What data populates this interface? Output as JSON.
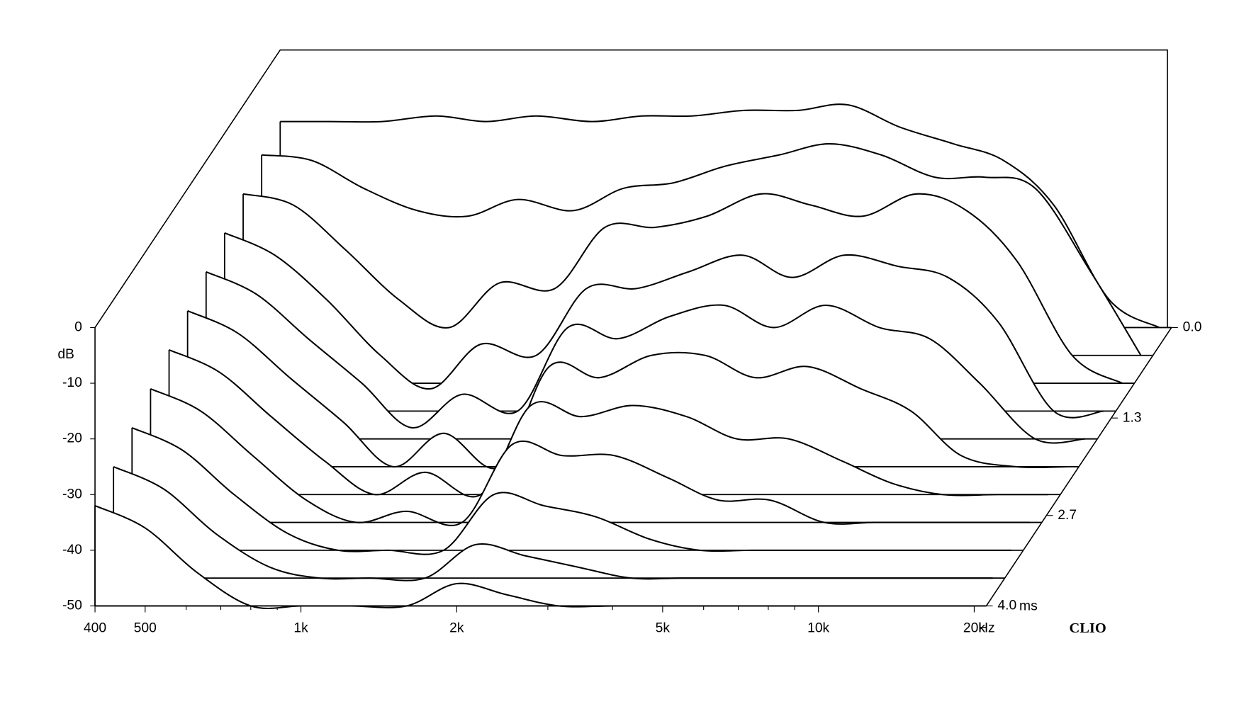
{
  "chart_data": {
    "type": "waterfall",
    "y_label": "dB",
    "x_unit": "Hz",
    "z_unit": "ms",
    "brand": "CLIO",
    "x": [
      400,
      500,
      630,
      800,
      1000,
      1250,
      1600,
      2000,
      2500,
      3150,
      4000,
      5000,
      6300,
      8000,
      10000,
      12500,
      16000,
      20000
    ],
    "z": [
      0,
      0.4,
      0.8,
      1.2,
      1.6,
      2.0,
      2.4,
      2.8,
      3.2,
      3.6,
      4.0
    ],
    "series": [
      {
        "values": [
          -13,
          -13,
          -13,
          -12,
          -13,
          -12,
          -13,
          -12,
          -12,
          -11,
          -11,
          -10,
          -14,
          -17,
          -20,
          -28,
          -45,
          -50
        ]
      },
      {
        "values": [
          -14,
          -15,
          -20,
          -24,
          -25,
          -22,
          -24,
          -20,
          -19,
          -16,
          -14,
          -12,
          -14,
          -18,
          -18,
          -20,
          -35,
          -50
        ]
      },
      {
        "values": [
          -16,
          -18,
          -26,
          -35,
          -40,
          -32,
          -33,
          -22,
          -22,
          -20,
          -16,
          -18,
          -20,
          -16,
          -19,
          -28,
          -45,
          -50
        ]
      },
      {
        "values": [
          -18,
          -22,
          -30,
          -40,
          -46,
          -38,
          -40,
          -28,
          -28,
          -25,
          -22,
          -26,
          -22,
          -24,
          -26,
          -34,
          -50,
          -50
        ]
      },
      {
        "values": [
          -20,
          -24,
          -32,
          -40,
          -48,
          -42,
          -45,
          -30,
          -32,
          -28,
          -26,
          -30,
          -26,
          -30,
          -32,
          -40,
          -50,
          -50
        ]
      },
      {
        "values": [
          -22,
          -26,
          -34,
          -42,
          -50,
          -44,
          -50,
          -32,
          -34,
          -30,
          -30,
          -34,
          -32,
          -36,
          -40,
          -48,
          -50,
          -50
        ]
      },
      {
        "values": [
          -24,
          -28,
          -36,
          -44,
          -50,
          -46,
          -50,
          -34,
          -36,
          -34,
          -36,
          -40,
          -40,
          -44,
          -48,
          -50,
          -50,
          -50
        ]
      },
      {
        "values": [
          -26,
          -30,
          -38,
          -46,
          -50,
          -48,
          -50,
          -36,
          -38,
          -38,
          -42,
          -46,
          -46,
          -50,
          -50,
          -50,
          -50,
          -50
        ]
      },
      {
        "values": [
          -28,
          -32,
          -40,
          -47,
          -50,
          -50,
          -50,
          -40,
          -42,
          -44,
          -48,
          -50,
          -50,
          -50,
          -50,
          -50,
          -50,
          -50
        ]
      },
      {
        "values": [
          -30,
          -34,
          -42,
          -48,
          -50,
          -50,
          -50,
          -44,
          -46,
          -48,
          -50,
          -50,
          -50,
          -50,
          -50,
          -50,
          -50,
          -50
        ]
      },
      {
        "values": [
          -32,
          -36,
          -44,
          -50,
          -50,
          -50,
          -50,
          -46,
          -48,
          -50,
          -50,
          -50,
          -50,
          -50,
          -50,
          -50,
          -50,
          -50
        ]
      }
    ],
    "xlim": [
      400,
      20000
    ],
    "log_x": true,
    "xticks": [
      400,
      500,
      {
        "value": 1000,
        "label": "1k"
      },
      {
        "value": 2000,
        "label": "2k"
      },
      {
        "value": 5000,
        "label": "5k"
      },
      {
        "value": 10000,
        "label": "10k"
      },
      {
        "value": 20000,
        "label": "20k"
      }
    ],
    "xminor_ticks": [
      600,
      700,
      800,
      900,
      3000,
      4000,
      6000,
      7000,
      8000,
      9000
    ],
    "ylim": [
      -50,
      0
    ],
    "yticks": [
      0,
      -10,
      -20,
      -30,
      -40,
      -50
    ],
    "zlim": [
      0,
      4
    ],
    "zticks": [
      {
        "value": 0,
        "label": "0.0"
      },
      1.3,
      2.7,
      {
        "value": 4,
        "label": "4.0"
      }
    ],
    "color": "#000000"
  }
}
